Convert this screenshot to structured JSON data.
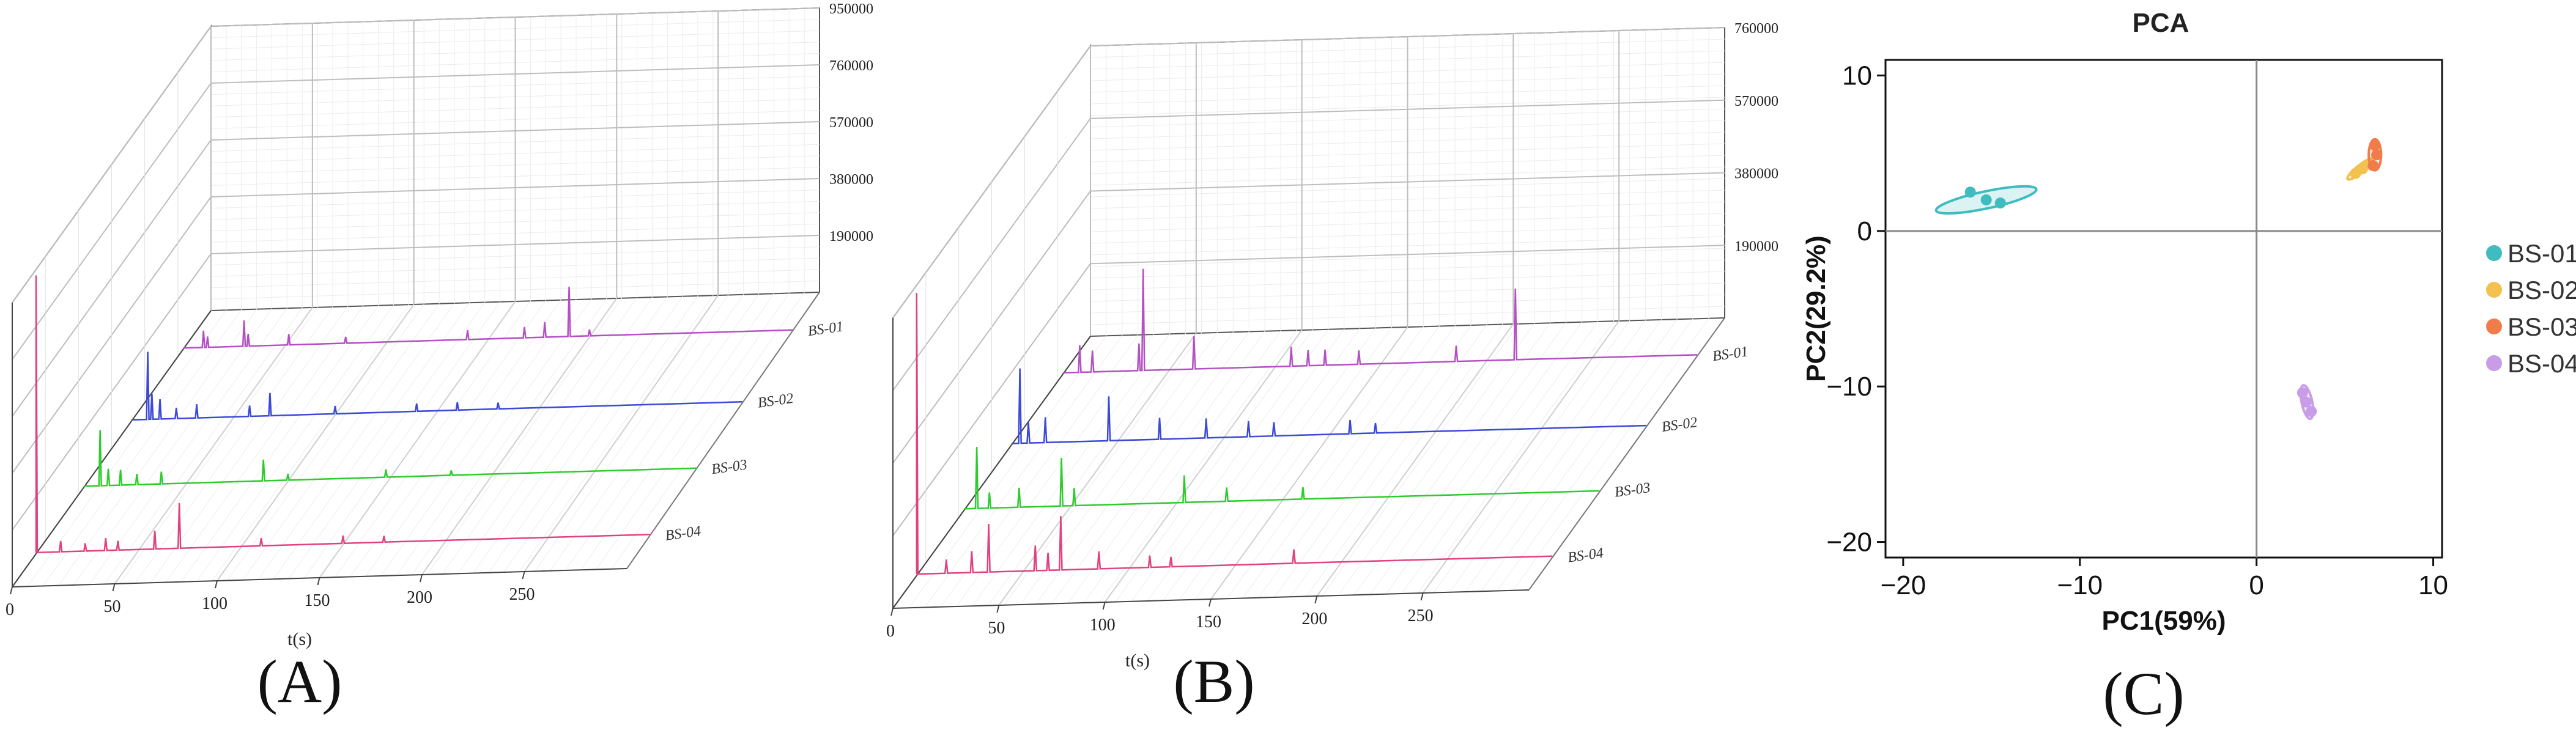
{
  "panels": [
    {
      "id": "A",
      "caption": "(A)",
      "chart_data": {
        "type": "line",
        "subtype": "3d-stacked-chromatogram",
        "xlabel": "t(s)",
        "x_ticks": [
          0,
          50,
          100,
          150,
          200,
          250
        ],
        "xlim": [
          0,
          300
        ],
        "z_ticks": [
          190000,
          380000,
          570000,
          760000,
          950000
        ],
        "z_tick_labels": [
          "190000",
          "380000",
          "570000",
          "760000",
          "950000"
        ],
        "zlim": [
          0,
          950000
        ],
        "series": [
          {
            "name": "BS-01",
            "color": "#b44fc4",
            "peaks": [
              [
                10,
                60000
              ],
              [
                12,
                40000
              ],
              [
                30,
                90000
              ],
              [
                32,
                45000
              ],
              [
                52,
                40000
              ],
              [
                80,
                25000
              ],
              [
                140,
                35000
              ],
              [
                168,
                40000
              ],
              [
                178,
                55000
              ],
              [
                190,
                170000
              ],
              [
                200,
                25000
              ]
            ]
          },
          {
            "name": "BS-02",
            "color": "#3b49d6",
            "peaks": [
              [
                8,
                230000
              ],
              [
                10,
                90000
              ],
              [
                14,
                70000
              ],
              [
                22,
                40000
              ],
              [
                32,
                50000
              ],
              [
                58,
                40000
              ],
              [
                68,
                80000
              ],
              [
                100,
                30000
              ],
              [
                140,
                30000
              ],
              [
                160,
                30000
              ],
              [
                180,
                25000
              ]
            ]
          },
          {
            "name": "BS-03",
            "color": "#2ccc2c",
            "peaks": [
              [
                8,
                190000
              ],
              [
                12,
                60000
              ],
              [
                18,
                55000
              ],
              [
                26,
                40000
              ],
              [
                38,
                45000
              ],
              [
                88,
                75000
              ],
              [
                100,
                25000
              ],
              [
                148,
                30000
              ],
              [
                180,
                20000
              ]
            ]
          },
          {
            "name": "BS-04",
            "color": "#e0417f",
            "peaks": [
              [
                0,
                930000
              ],
              [
                12,
                40000
              ],
              [
                24,
                30000
              ],
              [
                34,
                45000
              ],
              [
                40,
                35000
              ],
              [
                58,
                65000
              ],
              [
                70,
                155000
              ],
              [
                110,
                30000
              ],
              [
                150,
                30000
              ],
              [
                170,
                25000
              ]
            ]
          }
        ]
      }
    },
    {
      "id": "B",
      "caption": "(B)",
      "chart_data": {
        "type": "line",
        "subtype": "3d-stacked-chromatogram",
        "xlabel": "t(s)",
        "x_ticks": [
          0,
          50,
          100,
          150,
          200,
          250
        ],
        "xlim": [
          0,
          300
        ],
        "z_ticks": [
          190000,
          380000,
          570000,
          760000
        ],
        "z_tick_labels": [
          "190000",
          "380000",
          "570000",
          "760000"
        ],
        "zlim": [
          0,
          760000
        ],
        "series": [
          {
            "name": "BS-01",
            "color": "#b44fc4",
            "peaks": [
              [
                8,
                75000
              ],
              [
                14,
                60000
              ],
              [
                36,
                75000
              ],
              [
                38,
                270000
              ],
              [
                62,
                90000
              ],
              [
                108,
                55000
              ],
              [
                116,
                45000
              ],
              [
                124,
                45000
              ],
              [
                140,
                40000
              ],
              [
                186,
                45000
              ],
              [
                214,
                190000
              ]
            ]
          },
          {
            "name": "BS-02",
            "color": "#3b49d6",
            "peaks": [
              [
                4,
                200000
              ],
              [
                8,
                60000
              ],
              [
                16,
                70000
              ],
              [
                46,
                120000
              ],
              [
                70,
                60000
              ],
              [
                92,
                55000
              ],
              [
                112,
                45000
              ],
              [
                124,
                40000
              ],
              [
                160,
                40000
              ],
              [
                172,
                30000
              ]
            ]
          },
          {
            "name": "BS-03",
            "color": "#2ccc2c",
            "peaks": [
              [
                6,
                165000
              ],
              [
                12,
                45000
              ],
              [
                26,
                55000
              ],
              [
                46,
                130000
              ],
              [
                52,
                50000
              ],
              [
                104,
                75000
              ],
              [
                124,
                40000
              ],
              [
                160,
                35000
              ]
            ]
          },
          {
            "name": "BS-04",
            "color": "#e0417f",
            "peaks": [
              [
                0,
                740000
              ],
              [
                14,
                40000
              ],
              [
                26,
                60000
              ],
              [
                34,
                130000
              ],
              [
                56,
                70000
              ],
              [
                62,
                50000
              ],
              [
                68,
                145000
              ],
              [
                86,
                50000
              ],
              [
                110,
                35000
              ],
              [
                120,
                30000
              ],
              [
                178,
                40000
              ]
            ]
          }
        ]
      }
    },
    {
      "id": "C",
      "caption": "(C)",
      "chart_data": {
        "type": "scatter",
        "title": "PCA",
        "xlabel": "PC1(59%)",
        "ylabel": "PC2(29.2%)",
        "xlim": [
          -21,
          10.5
        ],
        "ylim": [
          -21,
          11
        ],
        "x_ticks": [
          -20,
          -10,
          0,
          10
        ],
        "y_ticks": [
          10,
          0,
          -10,
          -20
        ],
        "grid": false,
        "reference_lines": {
          "x": 0,
          "y": 0
        },
        "legend_position": "right",
        "series": [
          {
            "name": "BS-01",
            "color": "#3fbcc0",
            "points": [
              [
                -16.2,
                2.5
              ],
              [
                -15.3,
                2.0
              ],
              [
                -14.5,
                1.8
              ]
            ],
            "ellipse": {
              "cx": -15.3,
              "cy": 2.0,
              "rx": 2.9,
              "ry": 0.55,
              "angle_deg": -12
            }
          },
          {
            "name": "BS-02",
            "color": "#f2c14e",
            "points": [
              [
                5.6,
                3.7
              ],
              [
                6.0,
                4.0
              ],
              [
                6.4,
                4.3
              ]
            ],
            "ellipse": {
              "cx": 5.9,
              "cy": 4.0,
              "rx": 0.95,
              "ry": 0.25,
              "angle_deg": -38
            }
          },
          {
            "name": "BS-03",
            "color": "#f07c4a",
            "points": [
              [
                6.6,
                4.2
              ],
              [
                6.8,
                4.9
              ],
              [
                6.7,
                5.5
              ]
            ],
            "ellipse": {
              "cx": 6.7,
              "cy": 4.9,
              "rx": 0.35,
              "ry": 1.0,
              "angle_deg": 0
            }
          },
          {
            "name": "BS-04",
            "color": "#c99ce8",
            "points": [
              [
                2.6,
                -10.4
              ],
              [
                2.8,
                -11.0
              ],
              [
                3.1,
                -11.6
              ]
            ],
            "ellipse": {
              "cx": 2.85,
              "cy": -11.0,
              "rx": 0.3,
              "ry": 1.1,
              "angle_deg": -12
            }
          }
        ]
      }
    }
  ]
}
